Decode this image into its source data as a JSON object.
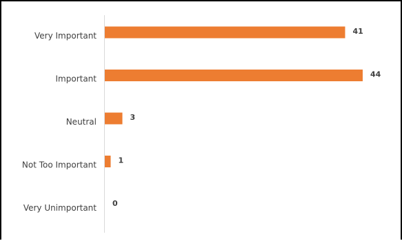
{
  "chart_data": {
    "type": "bar",
    "orientation": "horizontal",
    "categories": [
      "Very Important",
      "Important",
      "Neutral",
      "Not Too Important",
      "Very Unimportant"
    ],
    "values": [
      41,
      44,
      3,
      1,
      0
    ],
    "data_labels": [
      "41",
      "44",
      "3",
      "1",
      "0"
    ],
    "title": "",
    "xlabel": "",
    "ylabel": "",
    "xlim": [
      0,
      44
    ],
    "grid": false,
    "legend": "none",
    "bar_color": "#ED7D31",
    "axis_color": "#D9D9D9",
    "text_color": "#404040"
  }
}
